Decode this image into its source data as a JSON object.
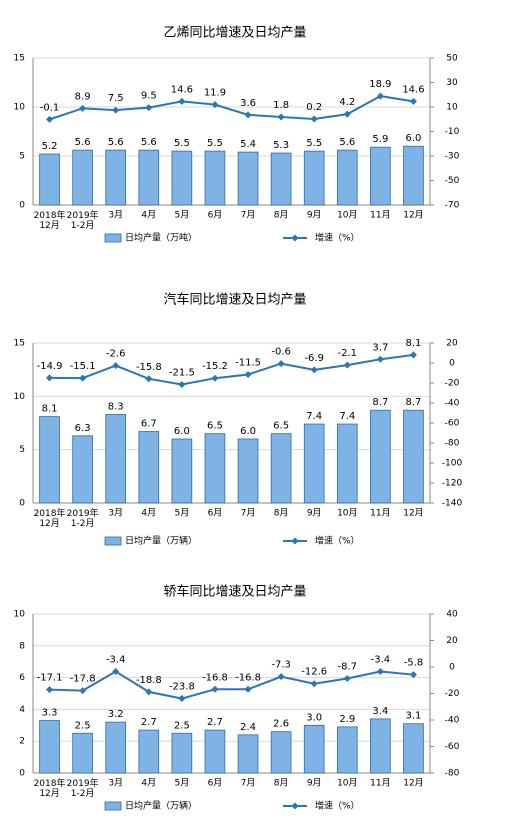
{
  "chart_data": [
    {
      "type": "combo",
      "title": "乙烯同比增速及日均产量",
      "categories": [
        "2018年\n12月",
        "2019年\n1-2月",
        "3月",
        "4月",
        "5月",
        "6月",
        "7月",
        "8月",
        "9月",
        "10月",
        "11月",
        "12月"
      ],
      "series": [
        {
          "name": "日均产量（万吨）",
          "type": "bar",
          "color": "#7fb2e5",
          "values": [
            5.2,
            5.6,
            5.6,
            5.6,
            5.5,
            5.5,
            5.4,
            5.3,
            5.5,
            5.6,
            5.9,
            6.0
          ],
          "value_labels": [
            "5.2",
            "5.6",
            "5.6",
            "5.6",
            "5.5",
            "5.5",
            "5.4",
            "5.3",
            "5.5",
            "5.6",
            "5.9",
            "6.0"
          ]
        },
        {
          "name": "增速（%）",
          "type": "line",
          "axis": "y2",
          "color": "#2e75b6",
          "values": [
            -0.1,
            8.9,
            7.5,
            9.5,
            14.6,
            11.9,
            3.6,
            1.8,
            0.2,
            4.2,
            18.9,
            14.6
          ],
          "value_labels": [
            "-0.1",
            "8.9",
            "7.5",
            "9.5",
            "14.6",
            "11.9",
            "3.6",
            "1.8",
            "0.2",
            "4.2",
            "18.9",
            "14.6"
          ]
        }
      ],
      "ylim": [
        0,
        15
      ],
      "yticks": [
        0,
        5,
        10,
        15
      ],
      "y2lim": [
        -70,
        50
      ],
      "y2ticks": [
        -70,
        -50,
        -30,
        -10,
        10,
        30,
        50
      ],
      "grid": true
    },
    {
      "type": "combo",
      "title": "汽车同比增速及日均产量",
      "categories": [
        "2018年\n12月",
        "2019年\n1-2月",
        "3月",
        "4月",
        "5月",
        "6月",
        "7月",
        "8月",
        "9月",
        "10月",
        "11月",
        "12月"
      ],
      "series": [
        {
          "name": "日均产量（万辆）",
          "type": "bar",
          "color": "#7fb2e5",
          "values": [
            8.1,
            6.3,
            8.3,
            6.7,
            6.0,
            6.5,
            6.0,
            6.5,
            7.4,
            7.4,
            8.7,
            8.7
          ],
          "value_labels": [
            "8.1",
            "6.3",
            "8.3",
            "6.7",
            "6.0",
            "6.5",
            "6.0",
            "6.5",
            "7.4",
            "7.4",
            "8.7",
            "8.7"
          ]
        },
        {
          "name": "增速（%）",
          "type": "line",
          "axis": "y2",
          "color": "#2e75b6",
          "values": [
            -14.9,
            -15.1,
            -2.6,
            -15.8,
            -21.5,
            -15.2,
            -11.5,
            -0.6,
            -6.9,
            -2.1,
            3.7,
            8.1
          ],
          "value_labels": [
            "-14.9",
            "-15.1",
            "-2.6",
            "-15.8",
            "-21.5",
            "-15.2",
            "-11.5",
            "-0.6",
            "-6.9",
            "-2.1",
            "3.7",
            "8.1"
          ]
        }
      ],
      "ylim": [
        0,
        15
      ],
      "yticks": [
        0,
        5,
        10,
        15
      ],
      "y2lim": [
        -140,
        20
      ],
      "y2ticks": [
        -140,
        -120,
        -100,
        -80,
        -60,
        -40,
        -20,
        0,
        20
      ],
      "grid": true
    },
    {
      "type": "combo",
      "title": "轿车同比增速及日均产量",
      "categories": [
        "2018年\n12月",
        "2019年\n1-2月",
        "3月",
        "4月",
        "5月",
        "6月",
        "7月",
        "8月",
        "9月",
        "10月",
        "11月",
        "12月"
      ],
      "series": [
        {
          "name": "日均产量（万辆）",
          "type": "bar",
          "color": "#7fb2e5",
          "values": [
            3.3,
            2.5,
            3.2,
            2.7,
            2.5,
            2.7,
            2.4,
            2.6,
            3.0,
            2.9,
            3.4,
            3.1
          ],
          "value_labels": [
            "3.3",
            "2.5",
            "3.2",
            "2.7",
            "2.5",
            "2.7",
            "2.4",
            "2.6",
            "3.0",
            "2.9",
            "3.4",
            "3.1"
          ]
        },
        {
          "name": "增速（%）",
          "type": "line",
          "axis": "y2",
          "color": "#2e75b6",
          "values": [
            -17.1,
            -17.8,
            -3.4,
            -18.8,
            -23.8,
            -16.8,
            -16.8,
            -7.3,
            -12.6,
            -8.7,
            -3.4,
            -5.8
          ],
          "value_labels": [
            "-17.1",
            "-17.8",
            "-3.4",
            "-18.8",
            "-23.8",
            "-16.8",
            "-16.8",
            "-7.3",
            "-12.6",
            "-8.7",
            "-3.4",
            "-5.8"
          ]
        }
      ],
      "ylim": [
        0,
        10
      ],
      "yticks": [
        0,
        2,
        4,
        6,
        8,
        10
      ],
      "y2lim": [
        -80,
        40
      ],
      "y2ticks": [
        -80,
        -60,
        -40,
        -20,
        0,
        20,
        40
      ],
      "grid": true
    }
  ]
}
